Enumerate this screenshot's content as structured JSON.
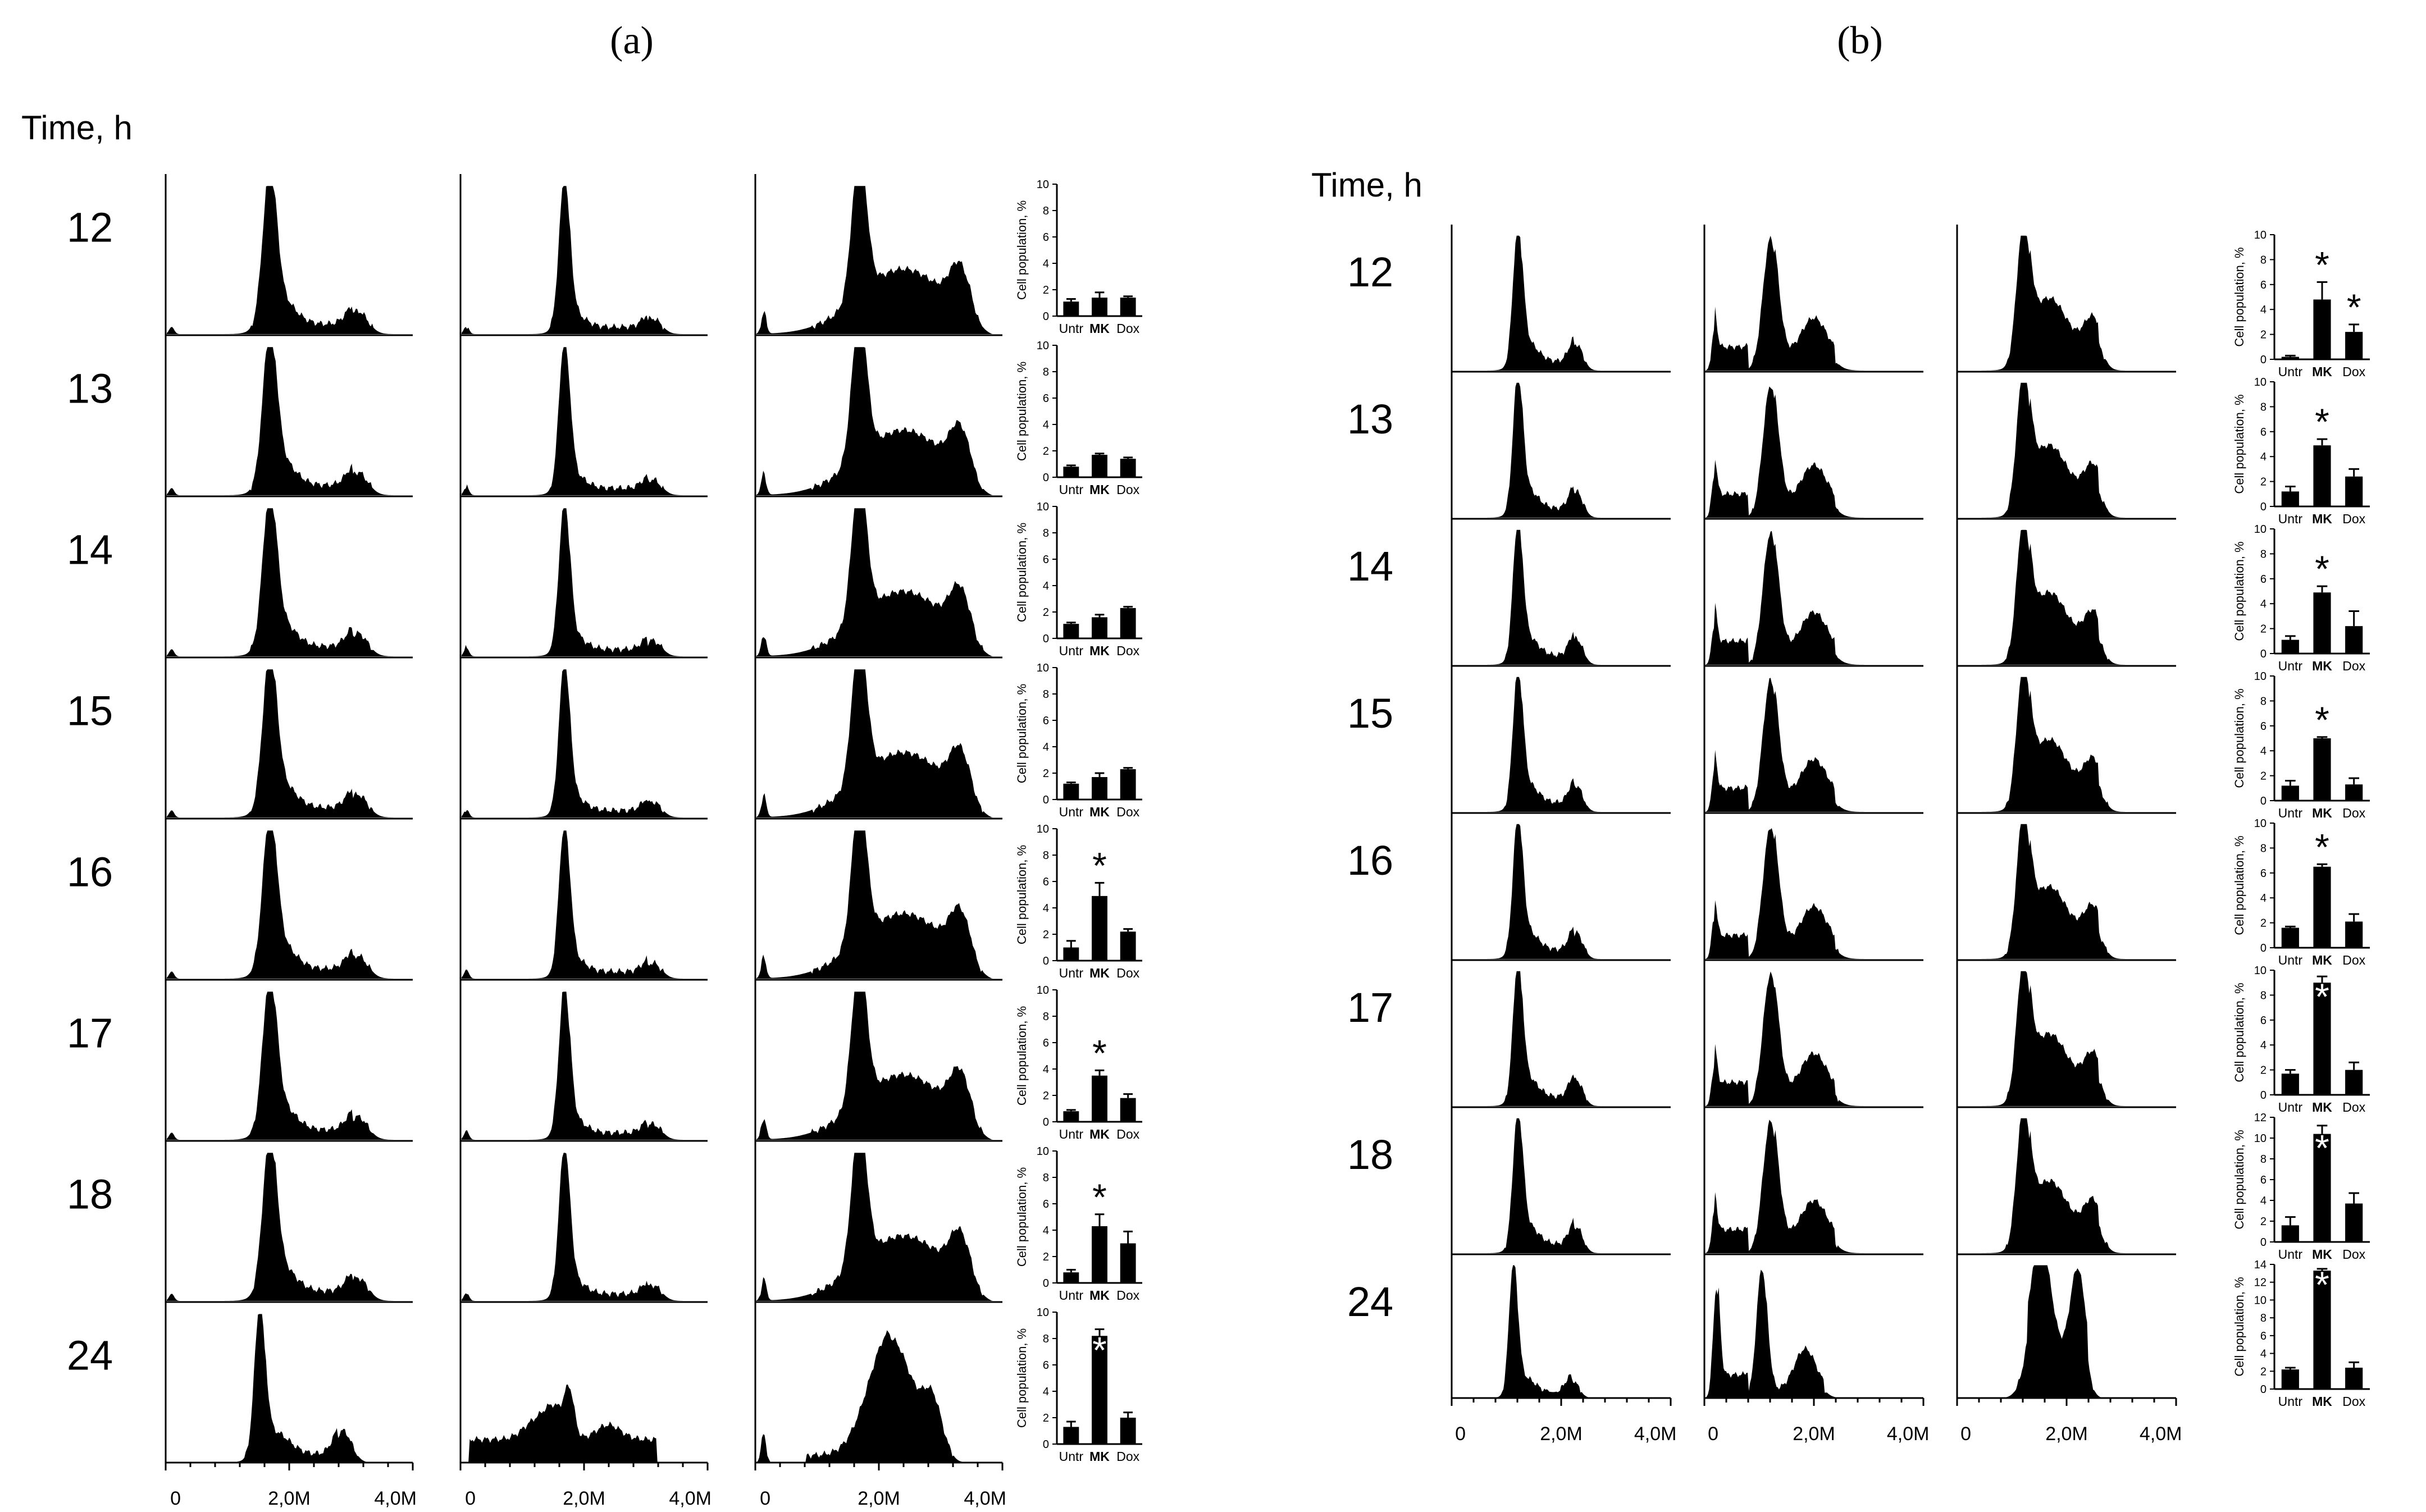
{
  "panels": [
    {
      "label": "(a)",
      "time_header": "Time, h",
      "x_ticks": [
        "0",
        "2,0M",
        "4,0M"
      ],
      "times": [
        "12",
        "13",
        "14",
        "15",
        "16",
        "17",
        "18",
        "24"
      ]
    },
    {
      "label": "(b)",
      "time_header": "Time, h",
      "x_ticks": [
        "0",
        "2,0M",
        "4,0M"
      ],
      "times": [
        "12",
        "13",
        "14",
        "15",
        "16",
        "17",
        "18",
        "24"
      ]
    }
  ],
  "chart_data": [
    {
      "type": "bar",
      "panel": "(a)",
      "title": "",
      "ylabel": "Cell population, %",
      "categories": [
        "Untr",
        "MK",
        "Dox"
      ],
      "rows": [
        {
          "time": "12",
          "ylim": [
            0,
            10
          ],
          "y_ticks": [
            "0",
            "2",
            "4",
            "6",
            "8",
            "10"
          ],
          "values": [
            1.1,
            1.4,
            1.4
          ],
          "errors": [
            0.2,
            0.4,
            0.1
          ],
          "asterisk": [
            "",
            "",
            ""
          ]
        },
        {
          "time": "13",
          "ylim": [
            0,
            10
          ],
          "y_ticks": [
            "0",
            "2",
            "4",
            "6",
            "8",
            "10"
          ],
          "values": [
            0.8,
            1.7,
            1.4
          ],
          "errors": [
            0.1,
            0.1,
            0.1
          ],
          "asterisk": [
            "",
            "",
            ""
          ]
        },
        {
          "time": "14",
          "ylim": [
            0,
            10
          ],
          "y_ticks": [
            "0",
            "2",
            "4",
            "6",
            "8",
            "10"
          ],
          "values": [
            1.1,
            1.6,
            2.3
          ],
          "errors": [
            0.1,
            0.2,
            0.1
          ],
          "asterisk": [
            "",
            "",
            ""
          ]
        },
        {
          "time": "15",
          "ylim": [
            0,
            10
          ],
          "y_ticks": [
            "0",
            "2",
            "4",
            "6",
            "8",
            "10"
          ],
          "values": [
            1.2,
            1.7,
            2.3
          ],
          "errors": [
            0.1,
            0.3,
            0.1
          ],
          "asterisk": [
            "",
            "",
            ""
          ]
        },
        {
          "time": "16",
          "ylim": [
            0,
            10
          ],
          "y_ticks": [
            "0",
            "2",
            "4",
            "6",
            "8",
            "10"
          ],
          "values": [
            1.0,
            4.9,
            2.2
          ],
          "errors": [
            0.5,
            1.0,
            0.2
          ],
          "asterisk": [
            "",
            "*",
            ""
          ]
        },
        {
          "time": "17",
          "ylim": [
            0,
            10
          ],
          "y_ticks": [
            "0",
            "2",
            "4",
            "6",
            "8",
            "10"
          ],
          "values": [
            0.8,
            3.5,
            1.8
          ],
          "errors": [
            0.1,
            0.4,
            0.3
          ],
          "asterisk": [
            "",
            "*",
            ""
          ]
        },
        {
          "time": "18",
          "ylim": [
            0,
            10
          ],
          "y_ticks": [
            "0",
            "2",
            "4",
            "6",
            "8",
            "10"
          ],
          "values": [
            0.8,
            4.3,
            3.0
          ],
          "errors": [
            0.2,
            0.9,
            0.9
          ],
          "asterisk": [
            "",
            "*",
            ""
          ]
        },
        {
          "time": "24",
          "ylim": [
            0,
            10
          ],
          "y_ticks": [
            "0",
            "2",
            "4",
            "6",
            "8",
            "10"
          ],
          "values": [
            1.3,
            8.2,
            2.0
          ],
          "errors": [
            0.4,
            0.5,
            0.4
          ],
          "asterisk": [
            "",
            "*",
            ""
          ]
        }
      ]
    },
    {
      "type": "bar",
      "panel": "(b)",
      "title": "",
      "ylabel": "Cell population, %",
      "categories": [
        "Untr",
        "MK",
        "Dox"
      ],
      "rows": [
        {
          "time": "12",
          "ylim": [
            0,
            10
          ],
          "y_ticks": [
            "0",
            "2",
            "4",
            "6",
            "8",
            "10"
          ],
          "values": [
            0.2,
            4.8,
            2.2
          ],
          "errors": [
            0.1,
            1.4,
            0.6
          ],
          "asterisk": [
            "",
            "*",
            "*"
          ]
        },
        {
          "time": "13",
          "ylim": [
            0,
            10
          ],
          "y_ticks": [
            "0",
            "2",
            "4",
            "6",
            "8",
            "10"
          ],
          "values": [
            1.2,
            4.9,
            2.4
          ],
          "errors": [
            0.4,
            0.5,
            0.6
          ],
          "asterisk": [
            "",
            "*",
            ""
          ]
        },
        {
          "time": "14",
          "ylim": [
            0,
            10
          ],
          "y_ticks": [
            "0",
            "2",
            "4",
            "6",
            "8",
            "10"
          ],
          "values": [
            1.1,
            4.9,
            2.2
          ],
          "errors": [
            0.3,
            0.5,
            1.2
          ],
          "asterisk": [
            "",
            "*",
            ""
          ]
        },
        {
          "time": "15",
          "ylim": [
            0,
            10
          ],
          "y_ticks": [
            "0",
            "2",
            "4",
            "6",
            "8",
            "10"
          ],
          "values": [
            1.2,
            5.0,
            1.3
          ],
          "errors": [
            0.4,
            0.1,
            0.5
          ],
          "asterisk": [
            "",
            "*",
            ""
          ]
        },
        {
          "time": "16",
          "ylim": [
            0,
            10
          ],
          "y_ticks": [
            "0",
            "2",
            "4",
            "6",
            "8",
            "10"
          ],
          "values": [
            1.6,
            6.5,
            2.1
          ],
          "errors": [
            0.1,
            0.2,
            0.6
          ],
          "asterisk": [
            "",
            "*",
            ""
          ]
        },
        {
          "time": "17",
          "ylim": [
            0,
            10
          ],
          "y_ticks": [
            "0",
            "2",
            "4",
            "6",
            "8",
            "10"
          ],
          "values": [
            1.7,
            9.0,
            2.0
          ],
          "errors": [
            0.3,
            0.5,
            0.6
          ],
          "asterisk": [
            "",
            "*",
            ""
          ]
        },
        {
          "time": "18",
          "ylim": [
            0,
            12
          ],
          "y_ticks": [
            "0",
            "2",
            "4",
            "6",
            "8",
            "10",
            "12"
          ],
          "values": [
            1.6,
            10.4,
            3.7
          ],
          "errors": [
            0.8,
            0.8,
            1.0
          ],
          "asterisk": [
            "",
            "*",
            ""
          ]
        },
        {
          "time": "24",
          "ylim": [
            0,
            14
          ],
          "y_ticks": [
            "0",
            "2",
            "4",
            "6",
            "8",
            "10",
            "12",
            "14"
          ],
          "values": [
            2.2,
            13.3,
            2.4
          ],
          "errors": [
            0.2,
            0.2,
            0.6
          ],
          "asterisk": [
            "",
            "*",
            ""
          ]
        }
      ]
    }
  ]
}
